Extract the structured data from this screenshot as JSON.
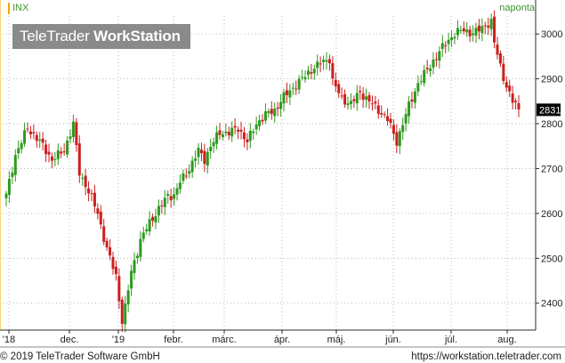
{
  "header": {
    "symbol": "INX",
    "period": "naponta",
    "logo_regular": "TeleTrader ",
    "logo_bold": "WorkStation"
  },
  "footer": {
    "copyright": "© 2019 TeleTrader Software GmbH",
    "url": "https://workstation.teletrader.com"
  },
  "colors": {
    "up": "#2e9a1e",
    "down": "#cc1f1f",
    "grid": "#b8b8b8",
    "axis": "#2b2b2b",
    "accent": "#f2a900"
  },
  "chart_data": {
    "type": "candlestick",
    "title": "INX",
    "period": "naponta",
    "ylim": [
      2340,
      3040
    ],
    "y_ticks": [
      2400,
      2500,
      2600,
      2700,
      2800,
      2900,
      3000
    ],
    "x_tick_labels": [
      "'18",
      "dec.",
      "'19",
      "febr.",
      "márc.",
      "ápr.",
      "máj.",
      "jún.",
      "júl.",
      "aug."
    ],
    "last_value": "2831",
    "grid": true,
    "anchor_closes": [
      [
        0,
        2640
      ],
      [
        3,
        2730
      ],
      [
        7,
        2790
      ],
      [
        11,
        2760
      ],
      [
        15,
        2720
      ],
      [
        19,
        2740
      ],
      [
        22,
        2800
      ],
      [
        24,
        2690
      ],
      [
        27,
        2650
      ],
      [
        30,
        2600
      ],
      [
        33,
        2520
      ],
      [
        36,
        2460
      ],
      [
        38,
        2360
      ],
      [
        39,
        2390
      ],
      [
        41,
        2470
      ],
      [
        44,
        2540
      ],
      [
        47,
        2580
      ],
      [
        50,
        2610
      ],
      [
        53,
        2640
      ],
      [
        55,
        2640
      ],
      [
        57,
        2670
      ],
      [
        60,
        2700
      ],
      [
        63,
        2740
      ],
      [
        65,
        2720
      ],
      [
        67,
        2750
      ],
      [
        70,
        2780
      ],
      [
        73,
        2780
      ],
      [
        76,
        2790
      ],
      [
        79,
        2760
      ],
      [
        82,
        2800
      ],
      [
        85,
        2820
      ],
      [
        88,
        2830
      ],
      [
        91,
        2860
      ],
      [
        94,
        2880
      ],
      [
        97,
        2900
      ],
      [
        100,
        2920
      ],
      [
        103,
        2935
      ],
      [
        106,
        2945
      ],
      [
        107,
        2895
      ],
      [
        110,
        2855
      ],
      [
        113,
        2845
      ],
      [
        116,
        2870
      ],
      [
        119,
        2850
      ],
      [
        122,
        2830
      ],
      [
        125,
        2810
      ],
      [
        128,
        2760
      ],
      [
        130,
        2800
      ],
      [
        132,
        2840
      ],
      [
        135,
        2890
      ],
      [
        138,
        2920
      ],
      [
        141,
        2950
      ],
      [
        144,
        2980
      ],
      [
        147,
        3000
      ],
      [
        150,
        3010
      ],
      [
        153,
        3000
      ],
      [
        155,
        3010
      ],
      [
        157,
        3020
      ],
      [
        159,
        3025
      ],
      [
        160,
        2980
      ],
      [
        162,
        2930
      ],
      [
        164,
        2880
      ],
      [
        166,
        2850
      ],
      [
        168,
        2835
      ]
    ]
  }
}
